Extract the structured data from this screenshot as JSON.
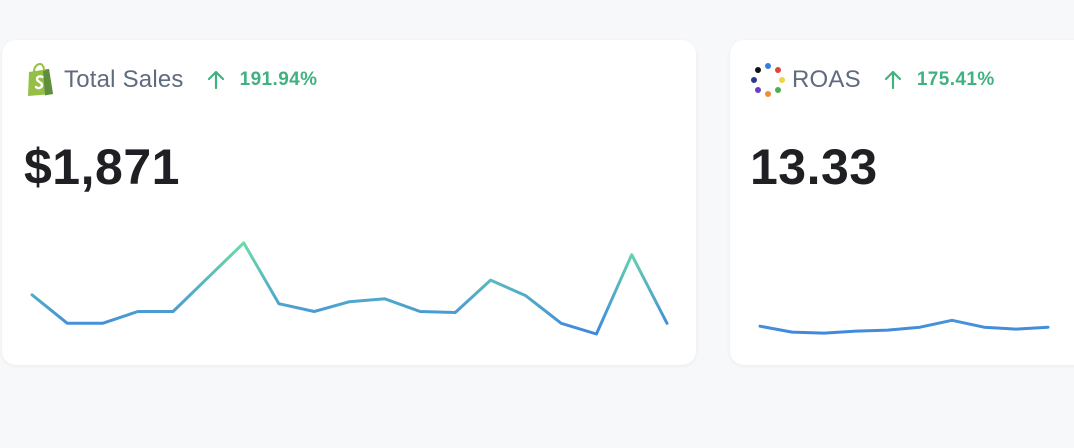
{
  "cards": [
    {
      "title": "Total Sales",
      "delta": "191.94%",
      "value": "$1,871",
      "icon": "shopify-bag-icon"
    },
    {
      "title": "ROAS",
      "delta": "175.41%",
      "value": "13.33",
      "icon": "dots-ring-icon"
    }
  ],
  "colors": {
    "delta_positive": "#3fb27f",
    "sparkline_low": "#3f86e0",
    "sparkline_high": "#6ee0a4"
  },
  "chart_data": [
    {
      "type": "line",
      "series": [
        {
          "values": [
            0.42,
            0.13,
            0.13,
            0.25,
            0.25,
            0.6,
            0.95,
            0.33,
            0.25,
            0.35,
            0.38,
            0.25,
            0.24,
            0.57,
            0.41,
            0.13,
            0.02,
            0.83,
            0.13
          ]
        }
      ]
    },
    {
      "type": "line",
      "series": [
        {
          "values": [
            0.1,
            0.04,
            0.03,
            0.05,
            0.06,
            0.09,
            0.16,
            0.09,
            0.07,
            0.09
          ]
        }
      ]
    }
  ]
}
